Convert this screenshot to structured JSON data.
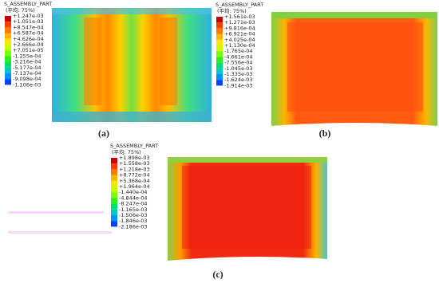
{
  "legend_colors": [
    "#c40000",
    "#ff3a00",
    "#ff7a00",
    "#ffb400",
    "#ffe600",
    "#c8ff00",
    "#7aff00",
    "#2cf01c",
    "#00e070",
    "#00c8c8",
    "#0090ff",
    "#0040ff"
  ],
  "panels": [
    {
      "legend_title": "S_ASSEMBLY_PART",
      "legend_subtitle": "(平均: 75%)",
      "label": "(a)",
      "legend_labels": [
        "+1.247e-03",
        "+1.051e-03",
        "+8.547e-04",
        "+6.587e-04",
        "+4.626e-04",
        "+2.666e-04",
        "+7.051e-05",
        "-1.255e-04",
        "-3.216e-04",
        "-5.177e-04",
        "-7.137e-04",
        "-9.098e-04",
        "-1.106e-03"
      ]
    },
    {
      "legend_title": "S_ASSEMBLY_PART",
      "legend_subtitle": "(平均: 75%)",
      "label": "(b)",
      "legend_labels": [
        "+1.561e-03",
        "+1.271e-03",
        "+9.816e-04",
        "+6.921e-04",
        "+4.025e-04",
        "+1.130e-04",
        "-1.765e-04",
        "-4.661e-04",
        "-7.556e-04",
        "-1.045e-03",
        "-1.335e-03",
        "-1.624e-03",
        "-1.914e-03"
      ]
    },
    {
      "legend_title": "S_ASSEMBLY_PART",
      "legend_subtitle": "(平均: 75%)",
      "label": "(c)",
      "legend_labels": [
        "+1.898e-03",
        "+1.558e-03",
        "+1.218e-03",
        "+8.772e-04",
        "+5.368e-04",
        "+1.964e-04",
        "-1.440e-04",
        "-4.844e-04",
        "-8.247e-04",
        "-1.165e-03",
        "-1.506e-03",
        "-1.846e-03",
        "-2.186e-03"
      ]
    }
  ]
}
